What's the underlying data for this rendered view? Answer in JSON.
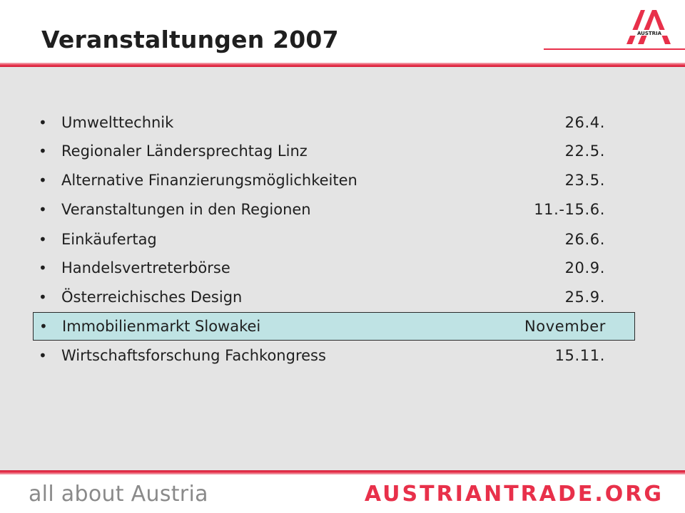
{
  "slide": {
    "title": "Veranstaltungen 2007",
    "logo_text": "AUSTRIA"
  },
  "events": [
    {
      "name": "Umwelttechnik",
      "date": "26.4."
    },
    {
      "name": "Regionaler Ländersprechtag Linz",
      "date": "22.5."
    },
    {
      "name": "Alternative Finanzierungsmöglichkeiten",
      "date": "23.5."
    },
    {
      "name": "Veranstaltungen in den Regionen",
      "date": "11.-15.6."
    },
    {
      "name": "Einkäufertag",
      "date": "26.6."
    },
    {
      "name": "Handelsvertreterbörse",
      "date": "20.9."
    },
    {
      "name": "Österreichisches Design",
      "date": "25.9."
    },
    {
      "name": "Immobilienmarkt Slowakei",
      "date": "November",
      "highlighted": true
    },
    {
      "name": "Wirtschaftsforschung Fachkongress",
      "date": "15.11."
    }
  ],
  "bullet_char": "•",
  "footer": {
    "left": "all about Austria",
    "right": "AUSTRIANTRADE.ORG"
  },
  "colors": {
    "accent_red": "#e8304a",
    "highlight": "#bfe3e4",
    "panel_gray": "#e4e4e4"
  }
}
